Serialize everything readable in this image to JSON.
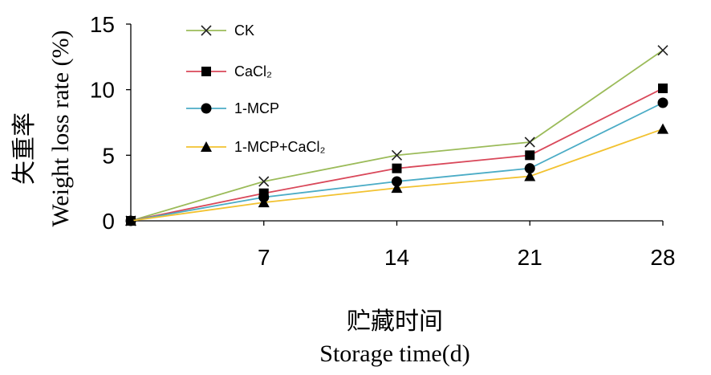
{
  "chart_data": {
    "type": "line",
    "x": [
      0,
      7,
      14,
      21,
      28
    ],
    "x_tick_labels": [
      "7",
      "14",
      "21",
      "28"
    ],
    "ylim": [
      0,
      15
    ],
    "y_ticks": [
      0,
      5,
      10,
      15
    ],
    "ylabel_zh": "失重率",
    "ylabel": "Weight loss rate (%)",
    "xlabel_zh": "贮藏时间",
    "xlabel": "Storage time(d)",
    "grid": false,
    "legend_position": "top-left",
    "series": [
      {
        "name": "CK",
        "values": [
          0,
          3.0,
          5.0,
          6.0,
          13.0
        ],
        "color": "#9bbb59",
        "marker": "x"
      },
      {
        "name": "CaCl₂",
        "values": [
          0,
          2.1,
          4.0,
          5.0,
          10.1
        ],
        "color": "#d9485a",
        "marker": "square"
      },
      {
        "name": "1-MCP",
        "values": [
          0,
          1.8,
          3.0,
          4.0,
          9.0
        ],
        "color": "#4bacc6",
        "marker": "circle"
      },
      {
        "name": "1-MCP+CaCl₂",
        "values": [
          0,
          1.4,
          2.5,
          3.4,
          7.0
        ],
        "color": "#f2c230",
        "marker": "triangle"
      }
    ]
  }
}
